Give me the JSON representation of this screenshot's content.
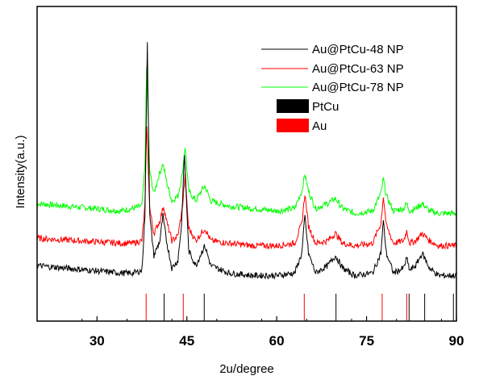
{
  "chart_data": {
    "type": "line",
    "xlabel": "2u/degree",
    "ylabel": "Intensity(a.u.)",
    "xlim": [
      20,
      90
    ],
    "xticks": [
      30,
      45,
      60,
      75,
      90
    ],
    "y_ticks_shown": false,
    "grid": false,
    "legend_position": "top-right",
    "series": [
      {
        "name": "Au@PtCu-48 NP",
        "color": "#000000",
        "baseline": 0.1,
        "x": [
          20,
          34,
          36,
          37.5,
          38.0,
          38.4,
          38.8,
          39.5,
          40.5,
          41.0,
          41.6,
          42.5,
          43.5,
          44.1,
          44.6,
          45.3,
          46.5,
          47.4,
          48.0,
          49.0,
          52,
          56,
          60,
          63,
          64.2,
          64.7,
          65.3,
          66.5,
          68.5,
          69.8,
          71.0,
          73,
          76,
          77.4,
          77.8,
          78.3,
          79.5,
          81.2,
          81.7,
          82.2,
          83.2,
          84.3,
          85.5,
          87,
          90
        ],
        "y": [
          0.1,
          0.07,
          0.07,
          0.08,
          0.3,
          1.0,
          0.3,
          0.14,
          0.2,
          0.3,
          0.2,
          0.09,
          0.12,
          0.26,
          0.55,
          0.16,
          0.1,
          0.15,
          0.18,
          0.1,
          0.07,
          0.06,
          0.06,
          0.07,
          0.15,
          0.3,
          0.15,
          0.07,
          0.1,
          0.14,
          0.09,
          0.06,
          0.07,
          0.15,
          0.28,
          0.15,
          0.07,
          0.09,
          0.13,
          0.08,
          0.1,
          0.15,
          0.09,
          0.06,
          0.06
        ]
      },
      {
        "name": "Au@PtCu-63 NP",
        "color": "#ff0000",
        "baseline": 0.21,
        "x": [
          20,
          34,
          36,
          37.5,
          38.0,
          38.3,
          38.8,
          39.5,
          40.5,
          41.1,
          41.7,
          42.5,
          43.5,
          44.2,
          44.7,
          45.3,
          46.5,
          47.4,
          48.0,
          49.0,
          52,
          56,
          60,
          63,
          64.2,
          64.7,
          65.3,
          66.5,
          68.5,
          69.8,
          71.0,
          73,
          76,
          77.4,
          77.8,
          78.3,
          79.5,
          81.2,
          81.7,
          82.2,
          83.2,
          84.3,
          85.5,
          87,
          90
        ],
        "y": [
          0.21,
          0.19,
          0.19,
          0.2,
          0.34,
          0.67,
          0.33,
          0.23,
          0.28,
          0.34,
          0.27,
          0.2,
          0.22,
          0.32,
          0.46,
          0.25,
          0.2,
          0.23,
          0.25,
          0.2,
          0.19,
          0.18,
          0.18,
          0.19,
          0.27,
          0.39,
          0.26,
          0.19,
          0.2,
          0.23,
          0.19,
          0.18,
          0.19,
          0.27,
          0.38,
          0.26,
          0.19,
          0.2,
          0.24,
          0.19,
          0.2,
          0.23,
          0.2,
          0.18,
          0.18
        ]
      },
      {
        "name": "Au@PtCu-78 NP",
        "color": "#00ff00",
        "baseline": 0.35,
        "x": [
          20,
          34,
          36,
          37.5,
          38.0,
          38.3,
          38.8,
          39.5,
          40.3,
          41.0,
          41.7,
          42.5,
          43.5,
          44.2,
          44.7,
          45.3,
          46.5,
          47.4,
          48.0,
          49.0,
          52,
          56,
          60,
          63,
          64.2,
          64.7,
          65.3,
          66.5,
          68.5,
          69.8,
          71.0,
          73,
          76,
          77.4,
          77.8,
          78.3,
          79.5,
          81.2,
          81.7,
          82.2,
          83.2,
          84.3,
          85.5,
          87,
          90
        ],
        "y": [
          0.35,
          0.32,
          0.33,
          0.34,
          0.5,
          0.9,
          0.48,
          0.39,
          0.46,
          0.51,
          0.43,
          0.36,
          0.38,
          0.46,
          0.58,
          0.4,
          0.36,
          0.4,
          0.42,
          0.36,
          0.34,
          0.33,
          0.32,
          0.33,
          0.4,
          0.47,
          0.4,
          0.33,
          0.35,
          0.37,
          0.33,
          0.31,
          0.32,
          0.39,
          0.45,
          0.38,
          0.32,
          0.33,
          0.35,
          0.32,
          0.33,
          0.35,
          0.32,
          0.31,
          0.31
        ]
      }
    ],
    "reference_bars": [
      {
        "name": "PtCu",
        "color": "#000000",
        "x": [
          41.2,
          47.9,
          69.9,
          82.1,
          84.7,
          89.5
        ]
      },
      {
        "name": "Au",
        "color": "#ff0000",
        "x": [
          38.2,
          44.4,
          64.6,
          77.6,
          81.7
        ]
      }
    ]
  }
}
